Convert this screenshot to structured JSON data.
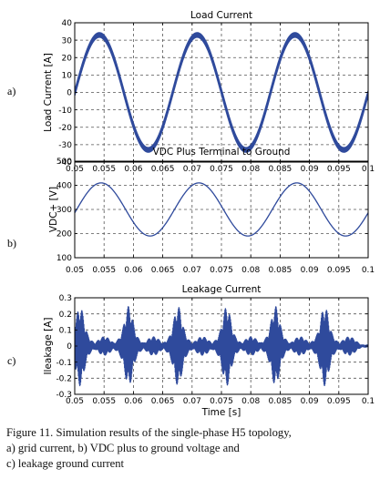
{
  "chart_data": [
    {
      "type": "line",
      "panel_label": "a)",
      "title": "Load Current",
      "xlabel": "",
      "ylabel": "Load Current [A]",
      "xlim": [
        0.05,
        0.1
      ],
      "ylim": [
        -40,
        40
      ],
      "xticks": [
        "0.05",
        "0.055",
        "0.06",
        "0.065",
        "0.07",
        "0.075",
        "0.08",
        "0.085",
        "0.09",
        "0.095",
        "0.1"
      ],
      "yticks": [
        "40",
        "30",
        "20",
        "10",
        "0",
        "-10",
        "-20",
        "-30",
        "-40"
      ],
      "grid": true,
      "line_color": "#2f4a9c",
      "series_shape": {
        "kind": "sinusoid",
        "amplitude": 33,
        "frequency_hz": 60,
        "peak_at_x": 0.0542,
        "ripple_band": 2.5
      }
    },
    {
      "type": "line",
      "panel_label": "b)",
      "title": "VDC Plus Terminal to Ground",
      "xlabel": "",
      "ylabel": "VDC+ [V]",
      "xlim": [
        0.05,
        0.1
      ],
      "ylim": [
        100,
        500
      ],
      "xticks": [
        "0.05",
        "0.055",
        "0.06",
        "0.065",
        "0.07",
        "0.075",
        "0.08",
        "0.085",
        "0.09",
        "0.095",
        "0.1"
      ],
      "yticks": [
        "500",
        "400",
        "300",
        "200",
        "100"
      ],
      "grid": true,
      "line_color": "#2f4a9c",
      "series_shape": {
        "kind": "sinusoid",
        "offset": 300,
        "amplitude": 110,
        "frequency_hz": 60,
        "peak_at_x": 0.0545
      }
    },
    {
      "type": "line",
      "panel_label": "c)",
      "title": "Leakage Current",
      "xlabel": "Time [s]",
      "ylabel": "Ileakage [A]",
      "xlim": [
        0.05,
        0.1
      ],
      "ylim": [
        -0.3,
        0.3
      ],
      "xticks": [
        "0.05",
        "0.055",
        "0.06",
        "0.065",
        "0.07",
        "0.075",
        "0.08",
        "0.085",
        "0.09",
        "0.095",
        "0.1"
      ],
      "yticks": [
        "0.3",
        "0.2",
        "0.1",
        "0",
        "-0.1",
        "-0.2",
        "-0.3"
      ],
      "grid": true,
      "line_color": "#2f4a9c",
      "series_shape": {
        "kind": "burst-envelope",
        "major_burst_peak": 0.17,
        "major_burst_x": [
          0.0509,
          0.0592,
          0.0676,
          0.0759,
          0.0842,
          0.0926
        ],
        "minor_burst_peak": 0.06,
        "baseline_band": 0.02
      }
    }
  ],
  "caption": {
    "line1": "Figure 11.  Simulation results of the single-phase H5 topology,",
    "line2": "a) grid current, b) VDC plus to ground voltage and",
    "line3": "c) leakage ground current"
  }
}
